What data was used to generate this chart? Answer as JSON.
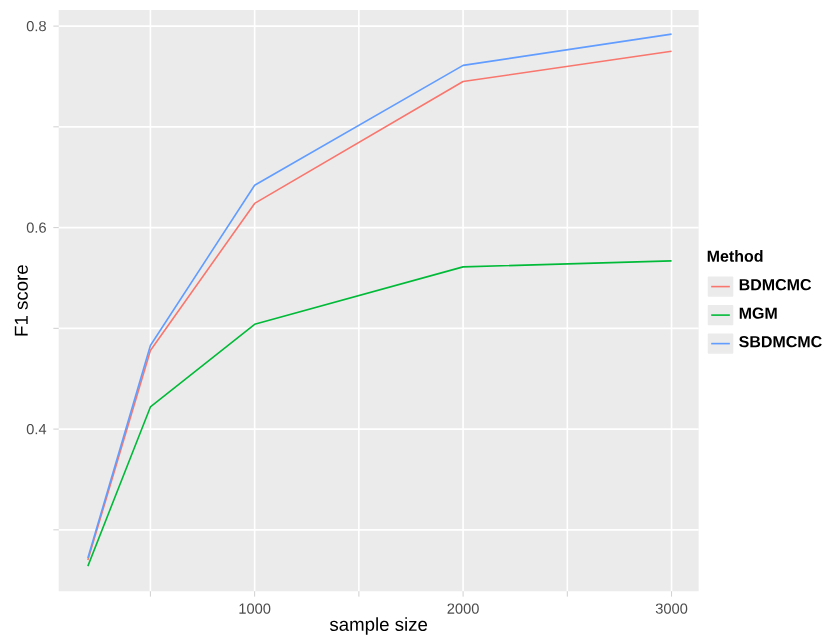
{
  "chart_data": {
    "type": "line",
    "xlabel": "sample size",
    "ylabel": "F1 score",
    "legend_title": "Method",
    "x": [
      200,
      500,
      1000,
      2000,
      3000
    ],
    "series": [
      {
        "name": "BDMCMC",
        "color": "#f8766d",
        "values": [
          0.27,
          0.478,
          0.624,
          0.745,
          0.775
        ]
      },
      {
        "name": "MGM",
        "color": "#00ba38",
        "values": [
          0.264,
          0.422,
          0.504,
          0.561,
          0.567
        ]
      },
      {
        "name": "SBDMCMC",
        "color": "#619cff",
        "values": [
          0.272,
          0.483,
          0.642,
          0.761,
          0.792
        ]
      }
    ],
    "xlim": [
      60,
      3130
    ],
    "ylim": [
      0.239,
      0.816
    ],
    "xticks": [
      {
        "value": 500,
        "label": null
      },
      1000,
      {
        "value": 1500,
        "label": null
      },
      2000,
      {
        "value": 2500,
        "label": null
      },
      3000
    ],
    "yticks": [
      {
        "value": 0.3,
        "label": null
      },
      0.4,
      {
        "value": 0.5,
        "label": null
      },
      0.6,
      {
        "value": 0.7,
        "label": null
      },
      0.8
    ],
    "grid": true,
    "legend": "right"
  }
}
